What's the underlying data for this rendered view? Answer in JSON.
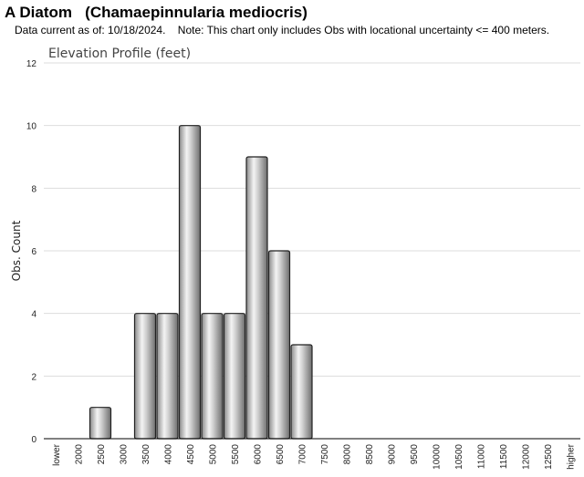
{
  "header": {
    "title": "A Diatom   (Chamaepinnularia mediocris)",
    "subtitle": "Data current as of: 10/18/2024.    Note: This chart only includes Obs with locational uncertainty <= 400 meters."
  },
  "chart_data": {
    "type": "bar",
    "title": "Elevation Profile (feet)",
    "xlabel": "",
    "ylabel": "Obs. Count",
    "ylim": [
      0,
      12
    ],
    "yticks": [
      0,
      2,
      4,
      6,
      8,
      10,
      12
    ],
    "grid": true,
    "categories": [
      "lower",
      "2000",
      "2500",
      "3000",
      "3500",
      "4000",
      "4500",
      "5000",
      "5500",
      "6000",
      "6500",
      "7000",
      "7500",
      "8000",
      "8500",
      "9000",
      "9500",
      "10000",
      "10500",
      "11000",
      "11500",
      "12000",
      "12500",
      "higher"
    ],
    "values": [
      0,
      0,
      1,
      0,
      4,
      4,
      10,
      4,
      4,
      9,
      6,
      3,
      0,
      0,
      0,
      0,
      0,
      0,
      0,
      0,
      0,
      0,
      0,
      0
    ],
    "colors": {
      "bar_light": "#f2f2f2",
      "bar_dark": "#7a7a7a",
      "bar_stroke": "#222222",
      "grid": "#dddddd",
      "axis": "#000000"
    }
  }
}
